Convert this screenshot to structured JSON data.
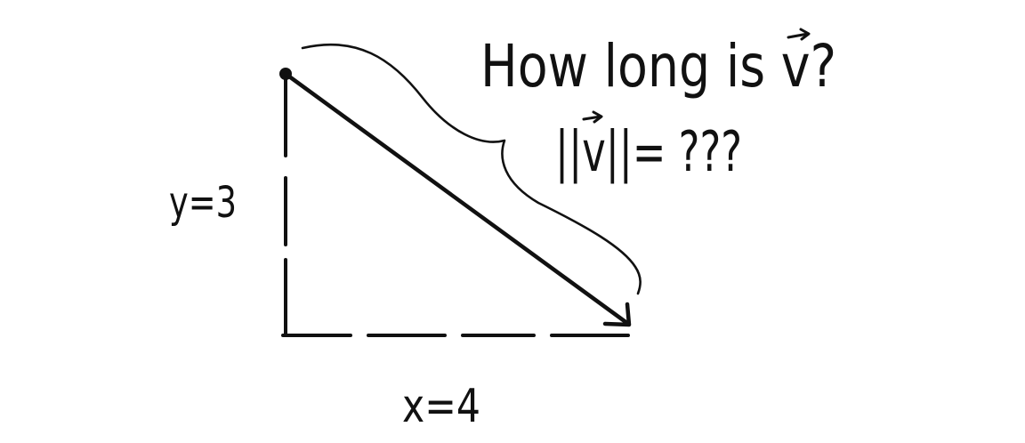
{
  "diagram": {
    "question": "How long is v?",
    "norm_expression": "||v||= ???",
    "y_label": "y=3",
    "x_label": "x=4",
    "vector_name": "v",
    "ink_color": "#111111",
    "background_color": "#ffffff"
  }
}
